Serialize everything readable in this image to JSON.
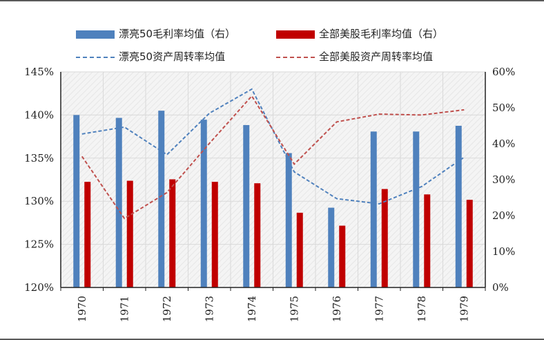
{
  "chart_data": {
    "type": "bar+line",
    "categories": [
      "1970",
      "1971",
      "1972",
      "1973",
      "1974",
      "1975",
      "1976",
      "1977",
      "1978",
      "1979"
    ],
    "y_left": {
      "lim": [
        120,
        145
      ],
      "ticks": [
        "120%",
        "125%",
        "130%",
        "135%",
        "140%",
        "145%"
      ],
      "tick_values": [
        120,
        125,
        130,
        135,
        140,
        145
      ]
    },
    "y_right": {
      "lim": [
        0,
        60
      ],
      "ticks": [
        "0%",
        "10%",
        "20%",
        "30%",
        "40%",
        "50%",
        "60%"
      ],
      "tick_values": [
        0,
        10,
        20,
        30,
        40,
        50,
        60
      ]
    },
    "legend": [
      {
        "label": "漂亮50毛利率均值（右）",
        "kind": "bar",
        "color": "#4f81bd"
      },
      {
        "label": "全部美股毛利率均值（右）",
        "kind": "bar",
        "color": "#c00000"
      },
      {
        "label": "漂亮50资产周转率均值",
        "kind": "line",
        "color": "#4f81bd"
      },
      {
        "label": "全部美股资产周转率均值",
        "kind": "line",
        "color": "#c0504d"
      }
    ],
    "series": [
      {
        "name": "漂亮50毛利率均值（右）",
        "type": "bar",
        "axis": "right",
        "color": "#4f81bd",
        "values": [
          48.0,
          47.2,
          49.2,
          46.7,
          45.2,
          37.4,
          22.2,
          43.4,
          43.4,
          45.0
        ]
      },
      {
        "name": "全部美股毛利率均值（右）",
        "type": "bar",
        "axis": "right",
        "color": "#c00000",
        "values": [
          29.4,
          29.7,
          30.1,
          29.4,
          29.0,
          20.8,
          17.2,
          27.4,
          25.9,
          24.4
        ]
      },
      {
        "name": "漂亮50资产周转率均值",
        "type": "line",
        "axis": "left",
        "color": "#4f81bd",
        "values": [
          137.8,
          138.6,
          135.4,
          140.2,
          143.0,
          133.4,
          130.3,
          129.7,
          131.7,
          135.1
        ]
      },
      {
        "name": "全部美股资产周转率均值",
        "type": "line",
        "axis": "left",
        "color": "#c0504d",
        "values": [
          135.2,
          128.0,
          131.0,
          136.7,
          142.2,
          134.3,
          139.2,
          140.1,
          140.0,
          140.6
        ]
      }
    ]
  }
}
